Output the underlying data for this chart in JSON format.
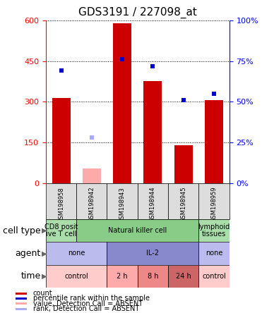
{
  "title": "GDS3191 / 227098_at",
  "samples": [
    "GSM198958",
    "GSM198942",
    "GSM198943",
    "GSM198944",
    "GSM198945",
    "GSM198959"
  ],
  "bar_values": [
    315,
    55,
    590,
    375,
    140,
    305
  ],
  "bar_absent": [
    false,
    true,
    false,
    false,
    false,
    false
  ],
  "dot_values": [
    69,
    28,
    76,
    72,
    51,
    55
  ],
  "dot_absent": [
    false,
    true,
    false,
    false,
    false,
    false
  ],
  "ylim_left": [
    0,
    600
  ],
  "ylim_right": [
    0,
    100
  ],
  "yticks_left": [
    0,
    150,
    300,
    450,
    600
  ],
  "yticks_right": [
    0,
    25,
    50,
    75,
    100
  ],
  "ytick_labels_right": [
    "0%",
    "25%",
    "50%",
    "75%",
    "100%"
  ],
  "bar_color_present": "#cc0000",
  "bar_color_absent": "#ffaaaa",
  "dot_color_present": "#0000cc",
  "dot_color_absent": "#aaaaff",
  "cell_type_segments": [
    {
      "text": "CD8 posit\nive T cell",
      "color": "#aaddaa",
      "span": [
        0,
        1
      ]
    },
    {
      "text": "Natural killer cell",
      "color": "#88cc88",
      "span": [
        1,
        5
      ]
    },
    {
      "text": "lymphoid\ntissues",
      "color": "#aaddaa",
      "span": [
        5,
        6
      ]
    }
  ],
  "agent_segments": [
    {
      "text": "none",
      "color": "#bbbbee",
      "span": [
        0,
        2
      ]
    },
    {
      "text": "IL-2",
      "color": "#8888cc",
      "span": [
        2,
        5
      ]
    },
    {
      "text": "none",
      "color": "#bbbbee",
      "span": [
        5,
        6
      ]
    }
  ],
  "time_segments": [
    {
      "text": "control",
      "color": "#ffcccc",
      "span": [
        0,
        2
      ]
    },
    {
      "text": "2 h",
      "color": "#ffaaaa",
      "span": [
        2,
        3
      ]
    },
    {
      "text": "8 h",
      "color": "#ee8888",
      "span": [
        3,
        4
      ]
    },
    {
      "text": "24 h",
      "color": "#cc6666",
      "span": [
        4,
        5
      ]
    },
    {
      "text": "control",
      "color": "#ffcccc",
      "span": [
        5,
        6
      ]
    }
  ],
  "row_labels": [
    "cell type",
    "agent",
    "time"
  ],
  "legend_items": [
    {
      "color": "#cc0000",
      "label": "count"
    },
    {
      "color": "#0000cc",
      "label": "percentile rank within the sample"
    },
    {
      "color": "#ffaaaa",
      "label": "value, Detection Call = ABSENT"
    },
    {
      "color": "#aaaaff",
      "label": "rank, Detection Call = ABSENT"
    }
  ],
  "sample_box_color": "#dddddd",
  "title_fontsize": 11,
  "tick_fontsize": 8,
  "row_label_fontsize": 9,
  "cell_fontsize": 7,
  "sample_fontsize": 6,
  "legend_fontsize": 7
}
